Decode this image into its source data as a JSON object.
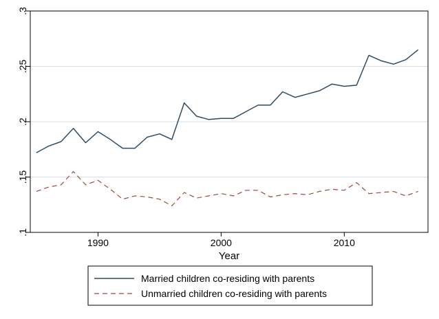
{
  "chart_data": {
    "type": "line",
    "title": "",
    "xlabel": "Year",
    "ylabel": "",
    "xlim": [
      1984.5,
      2016.8
    ],
    "ylim": [
      0.1,
      0.3
    ],
    "x_ticks": [
      1990,
      2000,
      2010
    ],
    "x_tick_labels": [
      "1990",
      "2000",
      "2010"
    ],
    "y_ticks": [
      0.1,
      0.15,
      0.2,
      0.25,
      0.3
    ],
    "y_tick_labels": [
      ".1",
      ".15",
      ".2",
      ".25",
      ".3"
    ],
    "grid": true,
    "legend_position": "bottom",
    "x": [
      1985,
      1986,
      1987,
      1988,
      1989,
      1990,
      1991,
      1992,
      1993,
      1994,
      1995,
      1996,
      1997,
      1998,
      1999,
      2000,
      2001,
      2002,
      2003,
      2004,
      2005,
      2006,
      2007,
      2008,
      2009,
      2010,
      2011,
      2012,
      2013,
      2014,
      2015,
      2016
    ],
    "series": [
      {
        "name": "Married children co-residing with parents",
        "color": "#2d4b63",
        "dash": "solid",
        "values": [
          0.172,
          0.178,
          0.182,
          0.194,
          0.181,
          0.191,
          0.184,
          0.176,
          0.176,
          0.186,
          0.189,
          0.184,
          0.217,
          0.205,
          0.202,
          0.203,
          0.203,
          0.209,
          0.215,
          0.215,
          0.227,
          0.222,
          0.225,
          0.228,
          0.234,
          0.232,
          0.233,
          0.26,
          0.255,
          0.252,
          0.256,
          0.265
        ]
      },
      {
        "name": "Unmarried children co-residing with parents",
        "color": "#9b4a3a",
        "dash": "dashed",
        "values": [
          0.137,
          0.141,
          0.143,
          0.155,
          0.143,
          0.147,
          0.139,
          0.13,
          0.133,
          0.132,
          0.13,
          0.124,
          0.136,
          0.131,
          0.133,
          0.135,
          0.133,
          0.138,
          0.138,
          0.132,
          0.134,
          0.135,
          0.134,
          0.137,
          0.139,
          0.138,
          0.145,
          0.135,
          0.136,
          0.137,
          0.133,
          0.137
        ]
      }
    ]
  }
}
